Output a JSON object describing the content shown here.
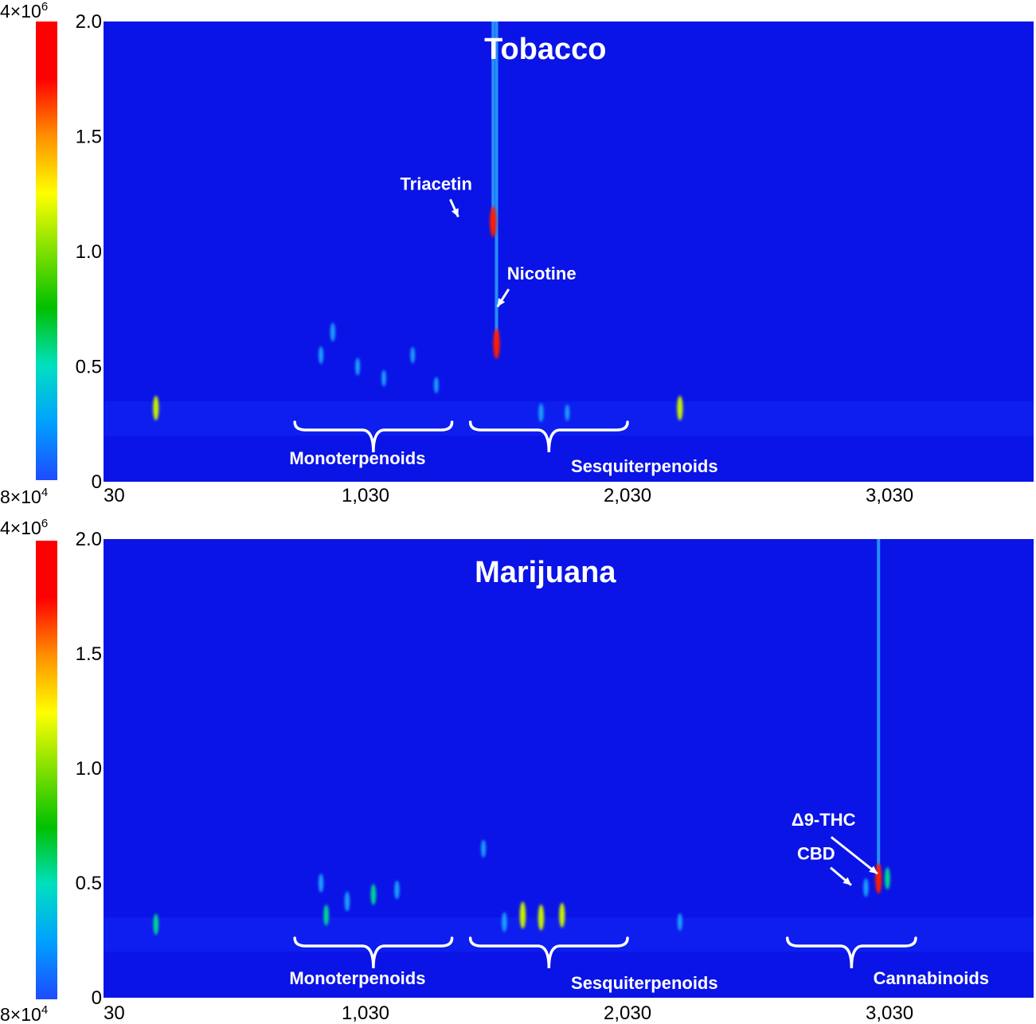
{
  "chart_data": [
    {
      "type": "heatmap",
      "title": "Tobacco",
      "xlim": [
        30,
        3580
      ],
      "ylim": [
        0,
        2.0
      ],
      "x_ticks": [
        {
          "value": 30,
          "label": "30"
        },
        {
          "value": 1030,
          "label": "1,030"
        },
        {
          "value": 2030,
          "label": "2,030"
        },
        {
          "value": 3030,
          "label": "3,030"
        }
      ],
      "y_ticks": [
        {
          "value": 0,
          "label": "0"
        },
        {
          "value": 0.5,
          "label": "0.5"
        },
        {
          "value": 1.0,
          "label": "1.0"
        },
        {
          "value": 1.5,
          "label": "1.5"
        },
        {
          "value": 2.0,
          "label": "2.0"
        }
      ],
      "colorbar": {
        "max_label": "4×10",
        "max_exp": "6",
        "min_label": "8×10",
        "min_exp": "4",
        "colors": [
          "#1e4bff",
          "#00a0ff",
          "#00e0c0",
          "#00c000",
          "#80e000",
          "#ffff00",
          "#ff9000",
          "#ff0000",
          "#ff0000"
        ]
      },
      "background_color": "#0a14e6",
      "annotations": [
        {
          "text": "Triacetin",
          "x": 1390,
          "y": 1.13
        },
        {
          "text": "Nicotine",
          "x": 1540,
          "y": 0.74
        }
      ],
      "groups": [
        {
          "label": "Monoterpenoids",
          "x_start": 760,
          "x_end": 1360
        },
        {
          "label": "Sesquiterpenoids",
          "x_start": 1430,
          "x_end": 2030
        }
      ],
      "peaks": [
        {
          "x": 1530,
          "y": 0.6,
          "intensity": 0.95
        },
        {
          "x": 1517,
          "y": 1.13,
          "intensity": 0.95
        },
        {
          "x": 2230,
          "y": 0.32,
          "intensity": 0.7
        },
        {
          "x": 230,
          "y": 0.32,
          "intensity": 0.7
        },
        {
          "x": 905,
          "y": 0.65,
          "intensity": 0.45
        },
        {
          "x": 860,
          "y": 0.55,
          "intensity": 0.4
        },
        {
          "x": 1000,
          "y": 0.5,
          "intensity": 0.4
        },
        {
          "x": 1100,
          "y": 0.45,
          "intensity": 0.35
        },
        {
          "x": 1210,
          "y": 0.55,
          "intensity": 0.35
        },
        {
          "x": 1700,
          "y": 0.3,
          "intensity": 0.45
        },
        {
          "x": 1800,
          "y": 0.3,
          "intensity": 0.35
        },
        {
          "x": 1300,
          "y": 0.42,
          "intensity": 0.35
        }
      ]
    },
    {
      "type": "heatmap",
      "title": "Marijuana",
      "xlim": [
        30,
        3580
      ],
      "ylim": [
        0,
        2.0
      ],
      "x_ticks": [
        {
          "value": 30,
          "label": "30"
        },
        {
          "value": 1030,
          "label": "1,030"
        },
        {
          "value": 2030,
          "label": "2,030"
        },
        {
          "value": 3030,
          "label": "3,030"
        }
      ],
      "y_ticks": [
        {
          "value": 0,
          "label": "0"
        },
        {
          "value": 0.5,
          "label": "0.5"
        },
        {
          "value": 1.0,
          "label": "1.0"
        },
        {
          "value": 1.5,
          "label": "1.5"
        },
        {
          "value": 2.0,
          "label": "2.0"
        }
      ],
      "colorbar": {
        "max_label": "4×10",
        "max_exp": "6",
        "min_label": "8×10",
        "min_exp": "4",
        "colors": [
          "#1e4bff",
          "#00a0ff",
          "#00e0c0",
          "#00c000",
          "#80e000",
          "#ffff00",
          "#ff9000",
          "#ff0000",
          "#ff0000"
        ]
      },
      "background_color": "#0a14e6",
      "annotations": [
        {
          "text": "Δ9-THC",
          "x": 2990,
          "y": 0.52
        },
        {
          "text": "CBD",
          "x": 2890,
          "y": 0.47
        }
      ],
      "groups": [
        {
          "label": "Monoterpenoids",
          "x_start": 760,
          "x_end": 1360
        },
        {
          "label": "Sesquiterpenoids",
          "x_start": 1430,
          "x_end": 2030
        },
        {
          "label": "Cannabinoids",
          "x_start": 2640,
          "x_end": 3130
        }
      ],
      "peaks": [
        {
          "x": 2988,
          "y": 0.52,
          "intensity": 0.95
        },
        {
          "x": 3022,
          "y": 0.52,
          "intensity": 0.6
        },
        {
          "x": 2940,
          "y": 0.48,
          "intensity": 0.45
        },
        {
          "x": 1630,
          "y": 0.36,
          "intensity": 0.8
        },
        {
          "x": 1700,
          "y": 0.35,
          "intensity": 0.75
        },
        {
          "x": 1780,
          "y": 0.36,
          "intensity": 0.7
        },
        {
          "x": 1560,
          "y": 0.33,
          "intensity": 0.5
        },
        {
          "x": 880,
          "y": 0.36,
          "intensity": 0.55
        },
        {
          "x": 960,
          "y": 0.42,
          "intensity": 0.5
        },
        {
          "x": 1060,
          "y": 0.45,
          "intensity": 0.55
        },
        {
          "x": 1150,
          "y": 0.47,
          "intensity": 0.45
        },
        {
          "x": 860,
          "y": 0.5,
          "intensity": 0.45
        },
        {
          "x": 1480,
          "y": 0.65,
          "intensity": 0.4
        },
        {
          "x": 230,
          "y": 0.32,
          "intensity": 0.55
        },
        {
          "x": 2230,
          "y": 0.33,
          "intensity": 0.4
        }
      ]
    }
  ]
}
